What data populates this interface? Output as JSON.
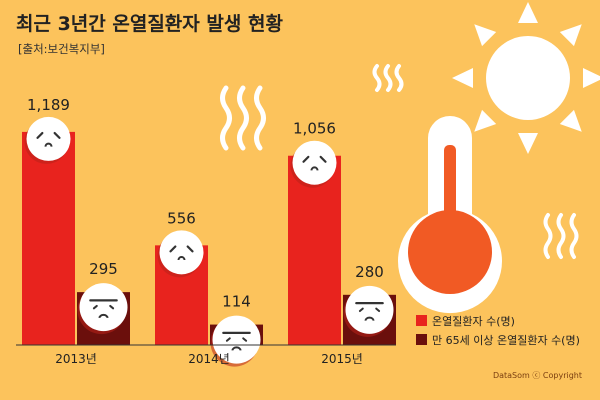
{
  "chart_data": {
    "type": "bar",
    "title": "최근 3년간 온열질환자 발생 현황",
    "subtitle": "[출처:보건복지부]",
    "categories": [
      "2013년",
      "2014년",
      "2015년"
    ],
    "series": [
      {
        "name": "온열질환자 수(명)",
        "values": [
          1189,
          556,
          1056
        ],
        "labels": [
          "1,189",
          "556",
          "1,056"
        ],
        "color": "#e8231e"
      },
      {
        "name": "만 65세 이상 온열질환자 수(명)",
        "values": [
          295,
          114,
          280
        ],
        "labels": [
          "295",
          "114",
          "280"
        ],
        "color": "#6b0f0c"
      }
    ],
    "ylim": [
      0,
      1300
    ],
    "legend_position": "bottom-right",
    "grid": false
  },
  "footer": {
    "credit": "DataSom ⓒ Copyright"
  },
  "colors": {
    "background": "#fcc35c",
    "thermo_bulb": "#f15a24",
    "thermo_glass": "#ffffff"
  },
  "icons": [
    "sun-icon",
    "heat-wave-icon",
    "thermometer-icon",
    "sad-face-icon"
  ]
}
